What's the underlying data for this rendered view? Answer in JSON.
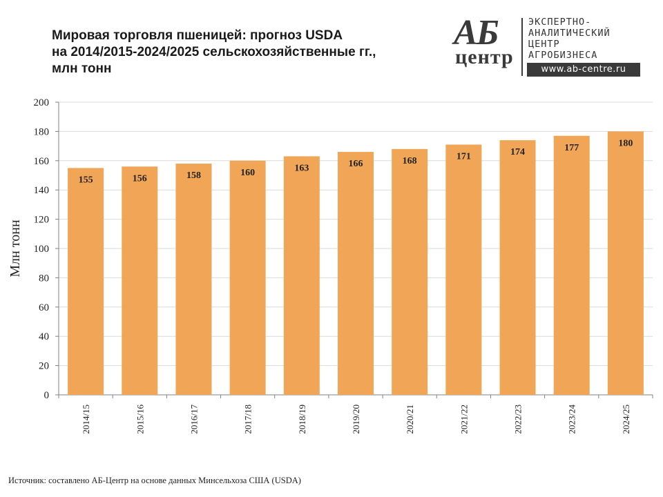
{
  "title_lines": [
    "Мировая торговля пшеницей: прогноз USDA",
    "на 2014/2015-2024/2025 сельскохозяйственные гг.,",
    "млн тонн"
  ],
  "logo": {
    "mark_top": "АБ",
    "mark_bottom": "центр",
    "lines": [
      "ЭКСПЕРТНО-",
      "АНАЛИТИЧЕСКИЙ",
      "ЦЕНТР",
      "АГРОБИЗНЕСА"
    ],
    "url": "www.ab-centre.ru"
  },
  "source": "Источник:  составлено АБ-Центр  на основе данных  Минсельхоза США  (USDA)",
  "colors": {
    "bar": "#F0A656",
    "grid": "#d9d9d9",
    "axis": "#808080"
  },
  "chart_data": {
    "type": "bar",
    "title": "Мировая торговля пшеницей: прогноз USDA на 2014/2015-2024/2025 сельскохозяйственные гг., млн тонн",
    "xlabel": "",
    "ylabel": "Млн тонн",
    "ylim": [
      0,
      200
    ],
    "yticks": [
      0,
      20,
      40,
      60,
      80,
      100,
      120,
      140,
      160,
      180,
      200
    ],
    "grid": true,
    "categories": [
      "2014/15",
      "2015/16",
      "2016/17",
      "2017/18",
      "2018/19",
      "2019/20",
      "2020/21",
      "2021/22",
      "2022/23",
      "2023/24",
      "2024/25"
    ],
    "values": [
      155,
      156,
      158,
      160,
      163,
      166,
      168,
      171,
      174,
      177,
      180
    ]
  }
}
